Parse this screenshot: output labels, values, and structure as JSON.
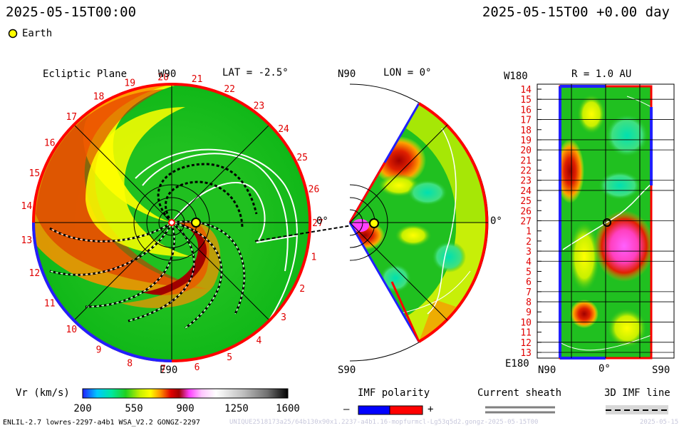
{
  "header": {
    "left_time": "2025-05-15T00:00",
    "right_time": "2025-05-15T00 +0.00 day",
    "earth_legend": "Earth"
  },
  "panels": {
    "ecliptic": {
      "title": "Ecliptic Plane",
      "top_label": "W90",
      "lat_label": "LAT = -2.5°",
      "right_label": "0°",
      "bottom_label": "E90"
    },
    "meridional": {
      "top_left": "N90",
      "lon_label": "LON = 0°",
      "right_label": "0°",
      "bottom_label": "S90"
    },
    "synoptic": {
      "top_left": "W180",
      "r_label": "R = 1.0 AU",
      "bottom_left": "E180",
      "bottom_ticks": [
        "N90",
        "0°",
        "S90"
      ]
    }
  },
  "ecliptic_ticks": [
    "27",
    "1",
    "2",
    "3",
    "4",
    "5",
    "6",
    "7",
    "8",
    "9",
    "10",
    "11",
    "12",
    "13",
    "14",
    "15",
    "16",
    "17",
    "18",
    "19",
    "20",
    "21",
    "22",
    "23",
    "24",
    "25",
    "26"
  ],
  "synoptic_ticks": [
    "14",
    "15",
    "16",
    "17",
    "18",
    "19",
    "20",
    "21",
    "22",
    "23",
    "24",
    "25",
    "26",
    "27",
    "1",
    "2",
    "3",
    "4",
    "5",
    "6",
    "7",
    "8",
    "9",
    "10",
    "11",
    "12",
    "13"
  ],
  "colorbar": {
    "label": "Vr (km/s)",
    "ticks": [
      "200",
      "550",
      "900",
      "1250",
      "1600"
    ],
    "colors": [
      "#2020ff",
      "#00c8ff",
      "#00e8a0",
      "#20d020",
      "#c8f000",
      "#ffff00",
      "#ff9000",
      "#e00000",
      "#a00000",
      "#ff40ff",
      "#ffc8ff",
      "#ffffff",
      "#c0c0c0",
      "#707070",
      "#000000"
    ]
  },
  "legends": {
    "imf_title": "IMF polarity",
    "imf_minus": "–",
    "imf_plus": "+",
    "sheath_title": "Current sheath",
    "imf3d_title": "3D IMF line",
    "polarity_colors": {
      "negative": "#0000ff",
      "positive": "#ff0000"
    }
  },
  "footer": {
    "model": "ENLIL-2.7 lowres-2297-a4b1 WSA_V2.2 GONGZ-2297",
    "run_id": "UNIQUE2518173a25/64b130x90x1.2237-a4b1.16-mopfurmcl-Lg53q5d2.gongz-2025-05-15T00",
    "date_tail": "2025-05-15"
  }
}
